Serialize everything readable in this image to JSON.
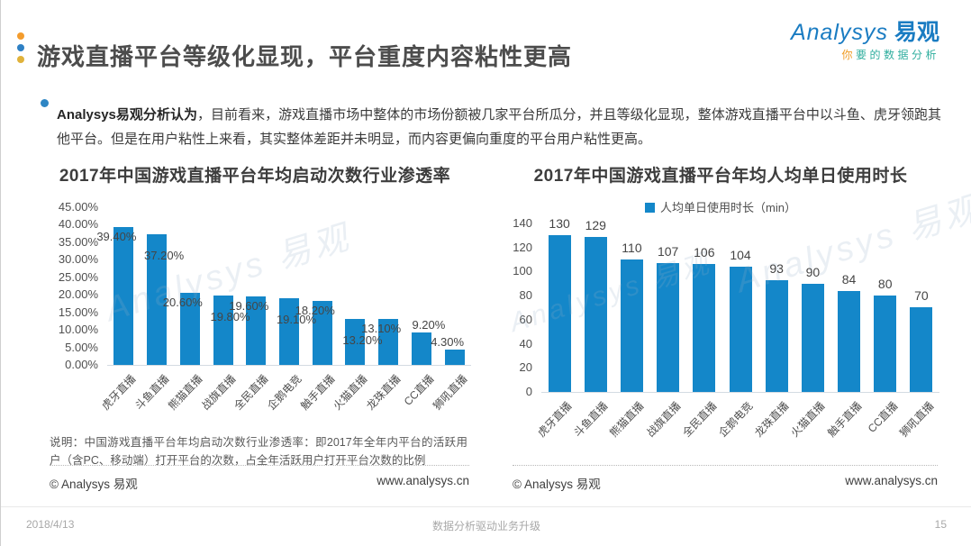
{
  "page": {
    "title": "游戏直播平台等级化显现，平台重度内容粘性更高",
    "dot_colors": [
      "#f39c2d",
      "#2e80c4",
      "#e0b23b"
    ],
    "logo": {
      "brand_en": "Analysys",
      "brand_cn": "易观",
      "tagline_first": "你",
      "tagline_rest": "要的数据分析"
    },
    "summary_lead": "Analysys易观分析认为",
    "summary_body": "，目前看来，游戏直播市场中整体的市场份额被几家平台所瓜分，并且等级化显现，整体游戏直播平台中以斗鱼、虎牙领跑其他平台。但是在用户粘性上来看，其实整体差距并未明显，而内容更偏向重度的平台用户粘性更高。",
    "watermark": "Analysys 易观",
    "footer": {
      "date": "2018/4/13",
      "slogan": "数据分析驱动业务升级",
      "page_number": "15"
    }
  },
  "chart_data": [
    {
      "type": "bar",
      "title": "2017年中国游戏直播平台年均启动次数行业渗透率",
      "categories": [
        "虎牙直播",
        "斗鱼直播",
        "熊猫直播",
        "战旗直播",
        "全民直播",
        "企鹅电竞",
        "触手直播",
        "火猫直播",
        "龙珠直播",
        "CC直播",
        "狮吼直播"
      ],
      "values": [
        39.4,
        37.2,
        20.6,
        19.8,
        19.6,
        19.1,
        18.2,
        13.2,
        13.1,
        9.2,
        4.3
      ],
      "labels": [
        "39.40%",
        "37.20%",
        "20.60%",
        "19.80%",
        "19.60%",
        "19.10%",
        "18.20%",
        "13.20%",
        "13.10%",
        "9.20%",
        "4.30%"
      ],
      "ylim": [
        0,
        45
      ],
      "ytick_step": 5,
      "ytick_format": "percent2",
      "bar_color": "#1487c9",
      "label_mode": "staggered",
      "grid": false,
      "legend": null,
      "note": "说明：中国游戏直播平台年均启动次数行业渗透率：即2017年全年内平台的活跃用户（含PC、移动端）打开平台的次数，占全年活跃用户打开平台次数的比例",
      "source": "© Analysys 易观",
      "website": "www.analysys.cn"
    },
    {
      "type": "bar",
      "title": "2017年中国游戏直播平台年均人均单日使用时长",
      "legend": "人均单日使用时长（min）",
      "legend_position": "top",
      "categories": [
        "虎牙直播",
        "斗鱼直播",
        "熊猫直播",
        "战旗直播",
        "全民直播",
        "企鹅电竞",
        "龙珠直播",
        "火猫直播",
        "触手直播",
        "CC直播",
        "狮吼直播"
      ],
      "values": [
        130,
        129,
        110,
        107,
        106,
        104,
        93,
        90,
        84,
        80,
        70
      ],
      "labels": [
        "130",
        "129",
        "110",
        "107",
        "106",
        "104",
        "93",
        "90",
        "84",
        "80",
        "70"
      ],
      "ylim": [
        0,
        140
      ],
      "ytick_step": 20,
      "ytick_format": "int",
      "bar_color": "#1487c9",
      "label_mode": "above",
      "grid": false,
      "source": "© Analysys 易观",
      "website": "www.analysys.cn"
    }
  ]
}
